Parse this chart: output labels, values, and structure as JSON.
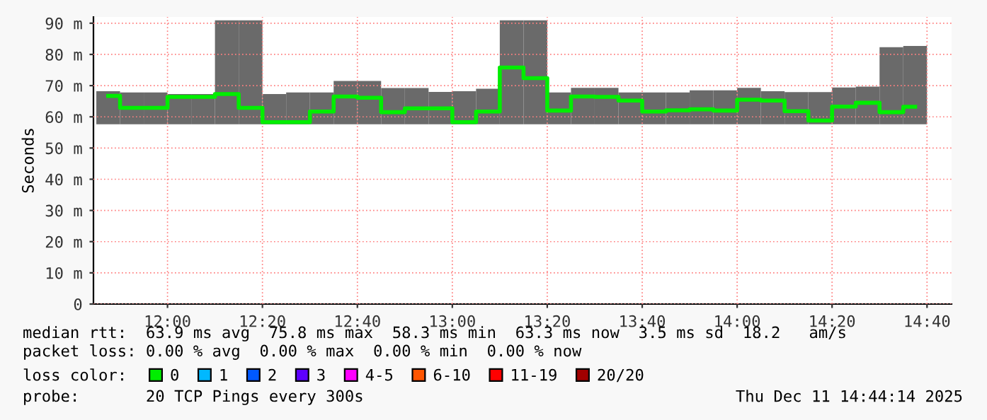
{
  "chart_data": {
    "type": "step",
    "ylabel": "Seconds",
    "x": [
      11.7917,
      11.875,
      11.9583,
      12.0417,
      12.125,
      12.2083,
      12.2917,
      12.375,
      12.4583,
      12.5417,
      12.625,
      12.7083,
      12.7917,
      12.875,
      12.9583,
      13.0417,
      13.125,
      13.2083,
      13.2917,
      13.375,
      13.4583,
      13.5417,
      13.625,
      13.7083,
      13.7917,
      13.875,
      13.9583,
      14.0417,
      14.125,
      14.2083,
      14.2917,
      14.375,
      14.4583,
      14.5417,
      14.625
    ],
    "series": [
      {
        "type": "bar",
        "color": "#6a6a6a",
        "base": [
          57.6,
          57.6,
          57.6,
          57.6,
          57.6,
          57.6,
          57.6,
          57.6,
          57.6,
          57.6,
          57.6,
          57.6,
          57.6,
          57.6,
          57.6,
          57.6,
          57.6,
          57.6,
          57.6,
          57.6,
          57.6,
          57.6,
          57.6,
          57.6,
          57.6,
          57.6,
          57.6,
          57.6,
          57.6,
          57.6,
          57.6,
          57.6,
          57.6,
          57.6,
          57.6
        ],
        "values": [
          10.6,
          10.2,
          10.2,
          9.7,
          9.7,
          33.3,
          33.3,
          9.7,
          10.2,
          10.2,
          13.9,
          13.9,
          11.6,
          11.6,
          10.4,
          10.6,
          11.4,
          33.3,
          33.3,
          10.2,
          11.7,
          11.7,
          10.2,
          10.2,
          10.2,
          10.9,
          10.9,
          11.7,
          10.6,
          10.3,
          10.3,
          11.8,
          12.1,
          24.7,
          25.1
        ]
      },
      {
        "name": "0",
        "color": "#00ee00",
        "values": [
          66.7,
          62.9,
          62.9,
          66.4,
          66.4,
          67.3,
          62.9,
          58.3,
          58.3,
          61.7,
          66.5,
          66.1,
          61.5,
          62.7,
          62.7,
          58.3,
          61.7,
          75.8,
          72.4,
          62.0,
          66.5,
          66.4,
          65.2,
          61.7,
          62.1,
          62.4,
          62.0,
          65.5,
          65.2,
          61.8,
          58.8,
          63.3,
          64.5,
          61.5,
          63.2
        ]
      },
      {
        "name": "1",
        "color": "#00b8ff",
        "values": [
          null,
          null,
          null,
          null,
          null,
          null,
          null,
          null,
          null,
          null,
          null,
          null,
          null,
          null,
          null,
          null,
          null,
          null,
          null,
          null,
          null,
          null,
          null,
          null,
          null,
          null,
          null,
          null,
          null,
          null,
          null,
          null,
          null,
          null,
          null
        ]
      },
      {
        "name": "2",
        "color": "#0059ff",
        "values": [
          null,
          null,
          null,
          null,
          null,
          null,
          null,
          null,
          null,
          null,
          null,
          null,
          null,
          null,
          null,
          null,
          null,
          null,
          null,
          null,
          null,
          null,
          null,
          null,
          null,
          null,
          null,
          null,
          null,
          null,
          null,
          null,
          null,
          null,
          null
        ]
      },
      {
        "name": "3",
        "color": "#5e00ff",
        "values": [
          null,
          null,
          null,
          null,
          null,
          null,
          null,
          null,
          null,
          null,
          null,
          null,
          null,
          null,
          null,
          null,
          null,
          null,
          null,
          null,
          null,
          null,
          null,
          null,
          null,
          null,
          null,
          null,
          null,
          null,
          null,
          null,
          null,
          null,
          null
        ]
      },
      {
        "name": "4-5",
        "color": "#ff00ff",
        "values": [
          null,
          null,
          null,
          null,
          null,
          null,
          null,
          null,
          null,
          null,
          null,
          null,
          null,
          null,
          null,
          null,
          null,
          null,
          null,
          null,
          null,
          null,
          null,
          null,
          null,
          null,
          null,
          null,
          null,
          null,
          null,
          null,
          null,
          null,
          null
        ]
      },
      {
        "name": "6-10",
        "color": "#ff5500",
        "values": [
          null,
          null,
          null,
          null,
          null,
          null,
          null,
          null,
          null,
          null,
          null,
          null,
          null,
          null,
          null,
          null,
          null,
          null,
          null,
          null,
          null,
          null,
          null,
          null,
          null,
          null,
          null,
          null,
          null,
          null,
          null,
          null,
          null,
          null,
          null
        ]
      },
      {
        "name": "11-19",
        "color": "#ff0000",
        "values": [
          null,
          null,
          null,
          null,
          null,
          null,
          null,
          null,
          null,
          null,
          null,
          null,
          null,
          null,
          null,
          null,
          null,
          null,
          null,
          null,
          null,
          null,
          null,
          null,
          null,
          null,
          null,
          null,
          null,
          null,
          null,
          null,
          null,
          null,
          null
        ]
      },
      {
        "name": "20/20",
        "color": "#a10000",
        "values": [
          null,
          null,
          null,
          null,
          null,
          null,
          null,
          null,
          null,
          null,
          null,
          null,
          null,
          null,
          null,
          null,
          null,
          null,
          null,
          null,
          null,
          null,
          null,
          null,
          null,
          null,
          null,
          null,
          null,
          null,
          null,
          null,
          null,
          null,
          null
        ]
      }
    ],
    "legend": "bottom",
    "legend_title": "loss color:",
    "xlim": [
      11.74,
      14.753
    ],
    "xticks": [
      {
        "value": 12.0,
        "label": "12:00"
      },
      {
        "value": 12.3333,
        "label": "12:20"
      },
      {
        "value": 12.6667,
        "label": "12:40"
      },
      {
        "value": 13.0,
        "label": "13:00"
      },
      {
        "value": 13.3333,
        "label": "13:20"
      },
      {
        "value": 13.6667,
        "label": "13:40"
      },
      {
        "value": 14.0,
        "label": "14:00"
      },
      {
        "value": 14.3333,
        "label": "14:20"
      },
      {
        "value": 14.6667,
        "label": "14:40"
      }
    ],
    "ylim": [
      0,
      92
    ],
    "yticks": [
      0,
      {
        "value": 10,
        "label": "10 m"
      },
      {
        "value": 20,
        "label": "20 m"
      },
      {
        "value": 30,
        "label": "30 m"
      },
      {
        "value": 40,
        "label": "40 m"
      },
      {
        "value": 50,
        "label": "50 m"
      },
      {
        "value": 60,
        "label": "60 m"
      },
      {
        "value": 70,
        "label": "70 m"
      },
      {
        "value": 80,
        "label": "80 m"
      },
      {
        "value": 90,
        "label": "90 m"
      }
    ],
    "grid": true,
    "annotations": [
      "median rtt:  63.9 ms avg  75.8 ms max  58.3 ms min  63.3 ms now  3.5 ms sd  18.2   am/s",
      "packet loss: 0.00 % avg  0.00 % max  0.00 % min  0.00 % now",
      "probe:       20 TCP Pings every 300s",
      "Thu Dec 11 14:44:14 2025"
    ]
  }
}
